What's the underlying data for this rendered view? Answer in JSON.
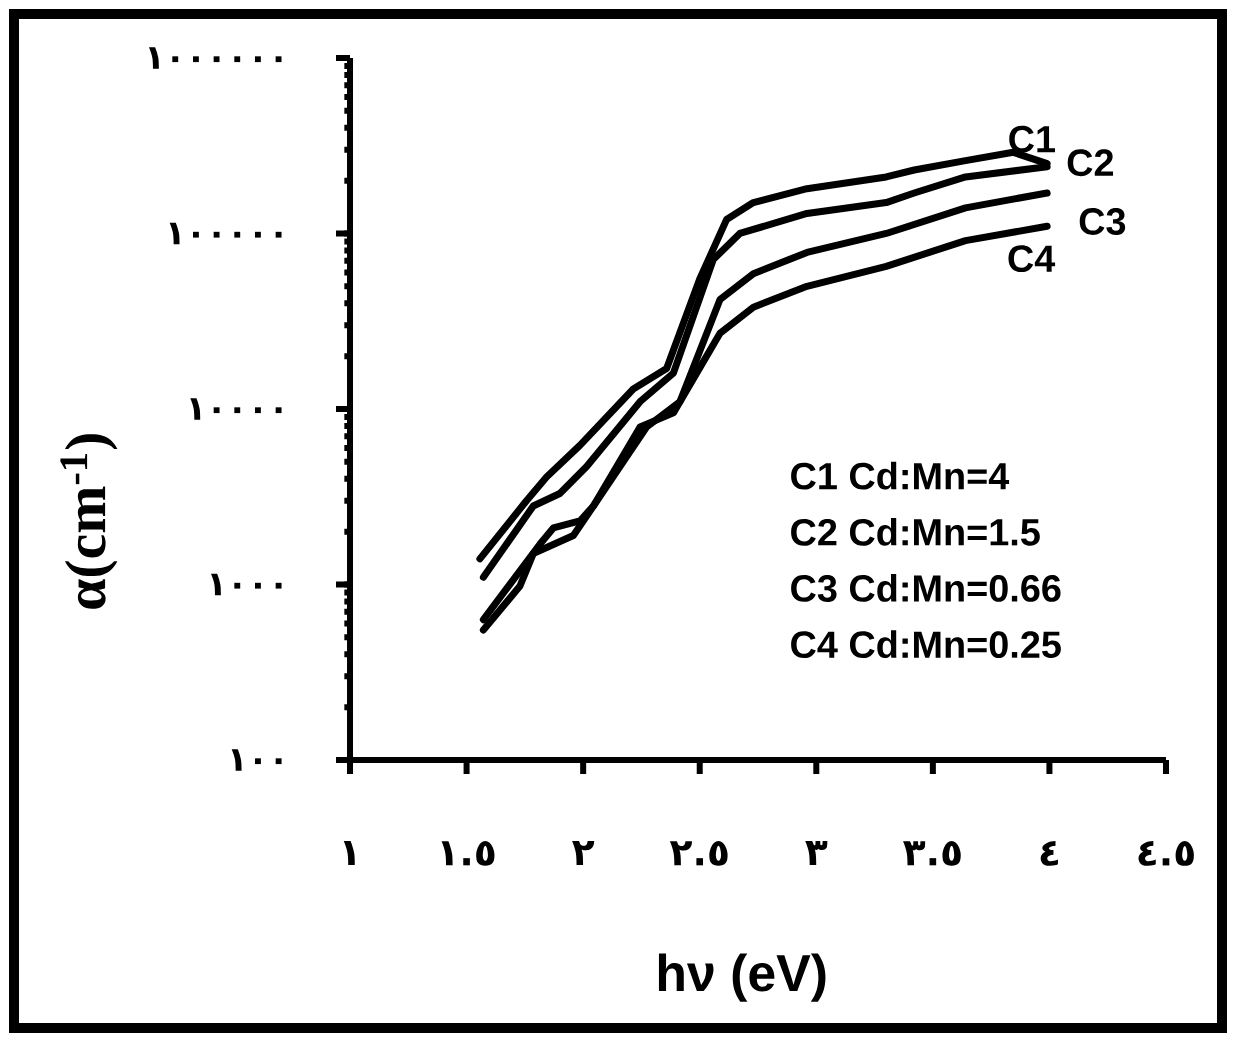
{
  "chart_data": {
    "type": "line",
    "xlabel": "hν (eV)",
    "ylabel": "α(cm$^{-1}$)",
    "log": "y",
    "xlim": [
      1,
      4.5
    ],
    "ylim": [
      100,
      1000000
    ],
    "xticks": [
      {
        "value": 1,
        "label": "١"
      },
      {
        "value": 1.5,
        "label": "١.٥"
      },
      {
        "value": 2,
        "label": "٢"
      },
      {
        "value": 2.5,
        "label": "٢.٥"
      },
      {
        "value": 3,
        "label": "٣"
      },
      {
        "value": 3.5,
        "label": "٣.٥"
      },
      {
        "value": 4,
        "label": "٤"
      },
      {
        "value": 4.5,
        "label": "٤.٥"
      }
    ],
    "yticks": [
      {
        "value": 100,
        "label": "١٠٠"
      },
      {
        "value": 1000,
        "label": "١٠٠٠"
      },
      {
        "value": 10000,
        "label": "١٠٠٠٠"
      },
      {
        "value": 100000,
        "label": "١٠٠٠٠٠"
      },
      {
        "value": 1000000,
        "label": "١٠٠٠٠٠٠"
      }
    ],
    "grid": false,
    "legend": false,
    "marker": "none",
    "line_style": "solid",
    "series": [
      {
        "name": "C1",
        "color": "#000000",
        "x": [
          1.557,
          1.757,
          1.843,
          1.986,
          2.215,
          2.358,
          2.5,
          2.615,
          2.73,
          2.96,
          3.3,
          3.42,
          3.64,
          3.845,
          3.99
        ],
        "values": [
          1400,
          3000,
          4100,
          6200,
          13000,
          17000,
          55000,
          120000,
          150000,
          180000,
          210000,
          230000,
          260000,
          290000,
          250000
        ]
      },
      {
        "name": "C2",
        "color": "#000000",
        "x": [
          1.572,
          1.786,
          1.9,
          2.015,
          2.244,
          2.387,
          2.558,
          2.672,
          2.96,
          3.3,
          3.42,
          3.64,
          3.99
        ],
        "values": [
          1100,
          2800,
          3300,
          4700,
          11000,
          16000,
          71000,
          100000,
          130000,
          150000,
          170000,
          210000,
          240000
        ]
      },
      {
        "name": "C3",
        "color": "#000000",
        "x": [
          1.572,
          1.815,
          1.872,
          1.986,
          2.044,
          2.272,
          2.415,
          2.587,
          2.73,
          2.96,
          3.3,
          3.64,
          3.99
        ],
        "values": [
          630,
          1700,
          2100,
          2300,
          2800,
          7900,
          11000,
          42000,
          59000,
          78000,
          100000,
          140000,
          170000
        ]
      },
      {
        "name": "C4",
        "color": "#000000",
        "x": [
          1.572,
          1.729,
          1.786,
          1.958,
          2.044,
          2.244,
          2.387,
          2.587,
          2.73,
          2.96,
          3.3,
          3.64,
          3.99
        ],
        "values": [
          550,
          980,
          1500,
          1900,
          2800,
          7900,
          9500,
          27000,
          38000,
          50000,
          65000,
          91000,
          110000
        ]
      }
    ],
    "annotations": [
      "C1  Cd:Mn=4",
      "C2  Cd:Mn=1.5",
      "C3  Cd:Mn=0.66",
      "C4  Cd:Mn=0.25"
    ]
  }
}
